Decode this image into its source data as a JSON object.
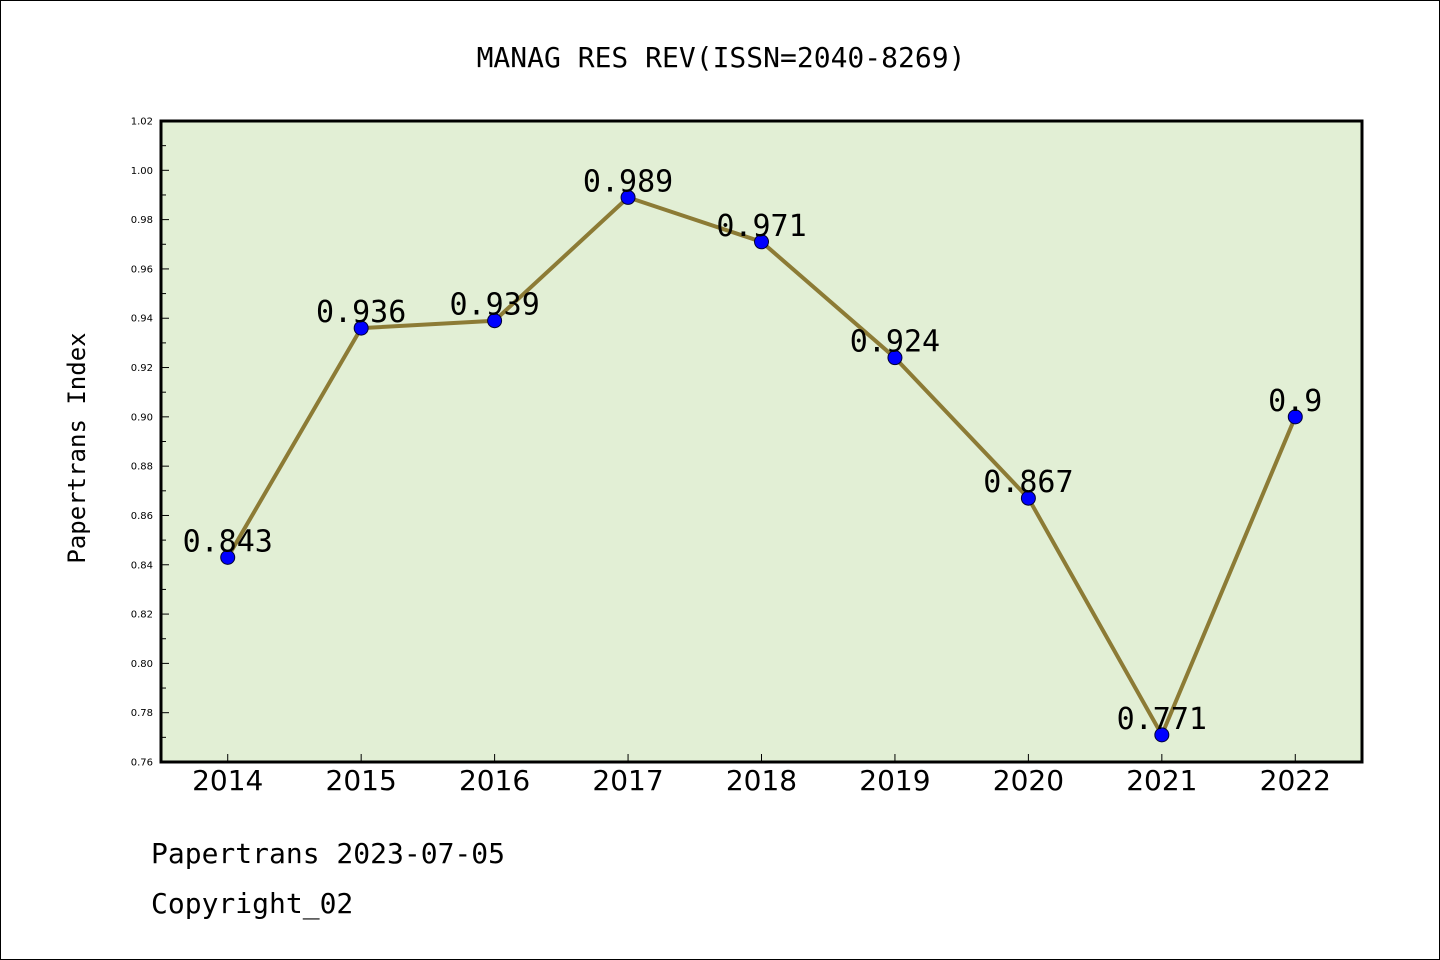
{
  "chart_data": {
    "type": "line",
    "title": "MANAG RES REV(ISSN=2040-8269)",
    "xlabel": "",
    "ylabel": "Papertrans Index",
    "x": [
      "2014",
      "2015",
      "2016",
      "2017",
      "2018",
      "2019",
      "2020",
      "2021",
      "2022"
    ],
    "series": [
      {
        "values": [
          0.843,
          0.936,
          0.939,
          0.989,
          0.971,
          0.924,
          0.867,
          0.771,
          0.9
        ],
        "data_labels": [
          "0.843",
          "0.936",
          "0.939",
          "0.989",
          "0.971",
          "0.924",
          "0.867",
          "0.771",
          "0.9"
        ]
      }
    ],
    "ylim": [
      0.76,
      1.02
    ],
    "yticks": [
      "0.76",
      "0.78",
      "0.80",
      "0.82",
      "0.84",
      "0.86",
      "0.88",
      "0.90",
      "0.92",
      "0.94",
      "0.96",
      "0.98",
      "1.00",
      "1.02"
    ],
    "grid": false,
    "legend": "none"
  },
  "footer": {
    "line1": "Papertrans 2023-07-05",
    "line2": "Copyright_02"
  },
  "colors": {
    "plot_background": "#e2efd5",
    "line": "#8c7b35",
    "marker": "#0000ff",
    "axis": "#000000"
  }
}
